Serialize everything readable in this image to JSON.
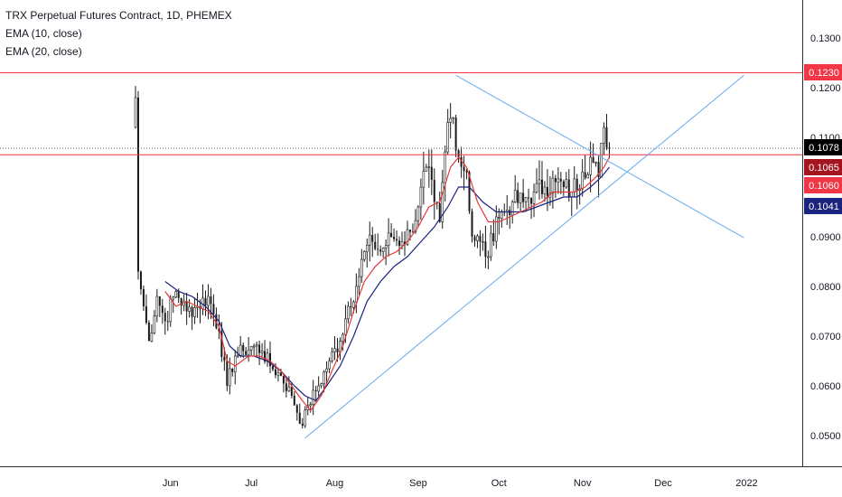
{
  "legend": {
    "title": "TRX Perpetual Futures Contract, 1D, PHEMEX",
    "indicators": [
      "EMA (10, close)",
      "EMA (20, close)"
    ]
  },
  "colors": {
    "up_candle": "#1a1a1a",
    "down_candle": "#1a1a1a",
    "ema10": "#e53935",
    "ema20": "#1a237e",
    "trendline": "#64a9f0",
    "horizontal": "#f23645",
    "dotted_last": "#5b6b8b"
  },
  "price_labels": [
    {
      "text": "0.1230",
      "bg": "#f23645",
      "fg": "#ffffff"
    },
    {
      "text": "0.1078",
      "bg": "#000000",
      "fg": "#ffffff"
    },
    {
      "text": "0.1065",
      "bg": "#a4151f",
      "fg": "#ffffff"
    },
    {
      "text": "0.1060",
      "bg": "#f23645",
      "fg": "#ffffff"
    },
    {
      "text": "0.1041",
      "bg": "#1a237e",
      "fg": "#ffffff"
    }
  ],
  "chart_data": {
    "type": "candlestick",
    "title": "TRX Perpetual Futures Contract, 1D, PHEMEX",
    "ylim": [
      0.0445,
      0.1345
    ],
    "y_ticks": [
      "0.1300",
      "0.1200",
      "0.1100",
      "0.1000",
      "0.0900",
      "0.0800",
      "0.0700",
      "0.0600",
      "0.0500"
    ],
    "x_ticks": [
      "Jun",
      "Jul",
      "Aug",
      "Sep",
      "Oct",
      "Nov",
      "Dec",
      "2022"
    ],
    "horizontal_levels": [
      0.123,
      0.1065
    ],
    "last_price": 0.1078,
    "ema10_last": 0.106,
    "ema20_last": 0.1041,
    "close_path": [
      [
        "2021-05-19",
        0.118
      ],
      [
        "2021-05-20",
        0.083
      ],
      [
        "2021-05-22",
        0.076
      ],
      [
        "2021-05-24",
        0.069
      ],
      [
        "2021-05-27",
        0.078
      ],
      [
        "2021-05-30",
        0.073
      ],
      [
        "2021-06-03",
        0.079
      ],
      [
        "2021-06-07",
        0.075
      ],
      [
        "2021-06-11",
        0.076
      ],
      [
        "2021-06-15",
        0.078
      ],
      [
        "2021-06-19",
        0.071
      ],
      [
        "2021-06-22",
        0.06
      ],
      [
        "2021-06-25",
        0.066
      ],
      [
        "2021-06-28",
        0.067
      ],
      [
        "2021-07-02",
        0.068
      ],
      [
        "2021-07-05",
        0.067
      ],
      [
        "2021-07-08",
        0.064
      ],
      [
        "2021-07-12",
        0.062
      ],
      [
        "2021-07-16",
        0.058
      ],
      [
        "2021-07-20",
        0.052
      ],
      [
        "2021-07-22",
        0.056
      ],
      [
        "2021-07-26",
        0.06
      ],
      [
        "2021-07-30",
        0.065
      ],
      [
        "2021-08-03",
        0.069
      ],
      [
        "2021-08-06",
        0.076
      ],
      [
        "2021-08-09",
        0.08
      ],
      [
        "2021-08-12",
        0.087
      ],
      [
        "2021-08-15",
        0.089
      ],
      [
        "2021-08-18",
        0.087
      ],
      [
        "2021-08-22",
        0.09
      ],
      [
        "2021-08-26",
        0.089
      ],
      [
        "2021-08-29",
        0.091
      ],
      [
        "2021-09-01",
        0.096
      ],
      [
        "2021-09-04",
        0.104
      ],
      [
        "2021-09-07",
        0.097
      ],
      [
        "2021-09-09",
        0.093
      ],
      [
        "2021-09-12",
        0.113
      ],
      [
        "2021-09-14",
        0.114
      ],
      [
        "2021-09-16",
        0.106
      ],
      [
        "2021-09-19",
        0.103
      ],
      [
        "2021-09-21",
        0.09
      ],
      [
        "2021-09-24",
        0.089
      ],
      [
        "2021-09-27",
        0.086
      ],
      [
        "2021-09-30",
        0.094
      ],
      [
        "2021-10-03",
        0.095
      ],
      [
        "2021-10-06",
        0.097
      ],
      [
        "2021-10-10",
        0.097
      ],
      [
        "2021-10-14",
        0.099
      ],
      [
        "2021-10-18",
        0.1
      ],
      [
        "2021-10-22",
        0.101
      ],
      [
        "2021-10-25",
        0.1
      ],
      [
        "2021-10-28",
        0.099
      ],
      [
        "2021-11-01",
        0.103
      ],
      [
        "2021-11-04",
        0.106
      ],
      [
        "2021-11-07",
        0.102
      ],
      [
        "2021-11-09",
        0.112
      ],
      [
        "2021-11-11",
        0.1078
      ]
    ],
    "ema10": [
      [
        "2021-05-30",
        0.079
      ],
      [
        "2021-06-03",
        0.076
      ],
      [
        "2021-06-07",
        0.077
      ],
      [
        "2021-06-11",
        0.076
      ],
      [
        "2021-06-15",
        0.075
      ],
      [
        "2021-06-19",
        0.072
      ],
      [
        "2021-06-22",
        0.065
      ],
      [
        "2021-06-25",
        0.064
      ],
      [
        "2021-06-30",
        0.066
      ],
      [
        "2021-07-04",
        0.066
      ],
      [
        "2021-07-08",
        0.065
      ],
      [
        "2021-07-12",
        0.063
      ],
      [
        "2021-07-16",
        0.06
      ],
      [
        "2021-07-20",
        0.057
      ],
      [
        "2021-07-23",
        0.055
      ],
      [
        "2021-07-27",
        0.058
      ],
      [
        "2021-07-31",
        0.063
      ],
      [
        "2021-08-04",
        0.068
      ],
      [
        "2021-08-08",
        0.075
      ],
      [
        "2021-08-12",
        0.081
      ],
      [
        "2021-08-16",
        0.084
      ],
      [
        "2021-08-20",
        0.086
      ],
      [
        "2021-08-24",
        0.087
      ],
      [
        "2021-08-28",
        0.089
      ],
      [
        "2021-09-01",
        0.092
      ],
      [
        "2021-09-05",
        0.096
      ],
      [
        "2021-09-09",
        0.097
      ],
      [
        "2021-09-13",
        0.104
      ],
      [
        "2021-09-16",
        0.106
      ],
      [
        "2021-09-19",
        0.104
      ],
      [
        "2021-09-23",
        0.097
      ],
      [
        "2021-09-27",
        0.093
      ],
      [
        "2021-10-01",
        0.093
      ],
      [
        "2021-10-05",
        0.094
      ],
      [
        "2021-10-09",
        0.095
      ],
      [
        "2021-10-13",
        0.096
      ],
      [
        "2021-10-17",
        0.097
      ],
      [
        "2021-10-21",
        0.099
      ],
      [
        "2021-10-25",
        0.099
      ],
      [
        "2021-10-29",
        0.099
      ],
      [
        "2021-11-02",
        0.1
      ],
      [
        "2021-11-06",
        0.102
      ],
      [
        "2021-11-09",
        0.104
      ],
      [
        "2021-11-11",
        0.106
      ]
    ],
    "ema20": [
      [
        "2021-05-30",
        0.081
      ],
      [
        "2021-06-04",
        0.079
      ],
      [
        "2021-06-09",
        0.078
      ],
      [
        "2021-06-14",
        0.076
      ],
      [
        "2021-06-19",
        0.073
      ],
      [
        "2021-06-23",
        0.068
      ],
      [
        "2021-06-27",
        0.066
      ],
      [
        "2021-07-02",
        0.066
      ],
      [
        "2021-07-07",
        0.065
      ],
      [
        "2021-07-12",
        0.063
      ],
      [
        "2021-07-17",
        0.06
      ],
      [
        "2021-07-21",
        0.058
      ],
      [
        "2021-07-25",
        0.057
      ],
      [
        "2021-07-29",
        0.06
      ],
      [
        "2021-08-03",
        0.064
      ],
      [
        "2021-08-08",
        0.07
      ],
      [
        "2021-08-13",
        0.077
      ],
      [
        "2021-08-18",
        0.081
      ],
      [
        "2021-08-23",
        0.084
      ],
      [
        "2021-08-28",
        0.086
      ],
      [
        "2021-09-02",
        0.089
      ],
      [
        "2021-09-07",
        0.092
      ],
      [
        "2021-09-12",
        0.096
      ],
      [
        "2021-09-16",
        0.1
      ],
      [
        "2021-09-20",
        0.1
      ],
      [
        "2021-09-25",
        0.097
      ],
      [
        "2021-09-30",
        0.095
      ],
      [
        "2021-10-05",
        0.095
      ],
      [
        "2021-10-10",
        0.095
      ],
      [
        "2021-10-15",
        0.096
      ],
      [
        "2021-10-20",
        0.097
      ],
      [
        "2021-10-25",
        0.098
      ],
      [
        "2021-10-30",
        0.098
      ],
      [
        "2021-11-04",
        0.1
      ],
      [
        "2021-11-08",
        0.102
      ],
      [
        "2021-11-11",
        0.104
      ]
    ],
    "trendlines": [
      {
        "from": [
          "2021-07-21",
          0.0495
        ],
        "to": [
          "2021-12-31",
          0.1225
        ]
      },
      {
        "from": [
          "2021-09-15",
          0.1225
        ],
        "to": [
          "2021-12-31",
          0.0898
        ]
      }
    ]
  }
}
